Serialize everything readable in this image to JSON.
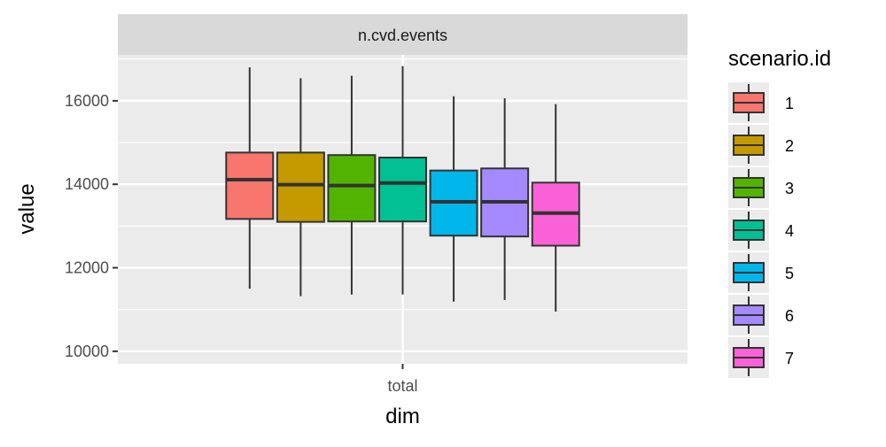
{
  "chart_data": {
    "type": "boxplot",
    "facet_label": "n.cvd.events",
    "xlabel": "dim",
    "ylabel": "value",
    "categories": [
      "total"
    ],
    "ylim": [
      9700,
      17100
    ],
    "y_ticks": [
      10000,
      12000,
      14000,
      16000
    ],
    "y_tick_labels": [
      "10000",
      "12000",
      "14000",
      "16000"
    ],
    "grid": true,
    "legend": {
      "title": "scenario.id",
      "position": "right"
    },
    "series": [
      {
        "name": "1",
        "color": "#F8766D",
        "min": 11500,
        "q1": 13170,
        "median": 14110,
        "q3": 14760,
        "max": 16800
      },
      {
        "name": "2",
        "color": "#C49A00",
        "min": 11320,
        "q1": 13100,
        "median": 13990,
        "q3": 14760,
        "max": 16540
      },
      {
        "name": "3",
        "color": "#53B400",
        "min": 11360,
        "q1": 13110,
        "median": 13970,
        "q3": 14700,
        "max": 16600
      },
      {
        "name": "4",
        "color": "#00C094",
        "min": 11360,
        "q1": 13110,
        "median": 14030,
        "q3": 14640,
        "max": 16830
      },
      {
        "name": "5",
        "color": "#00B6EB",
        "min": 11190,
        "q1": 12770,
        "median": 13580,
        "q3": 14330,
        "max": 16110
      },
      {
        "name": "6",
        "color": "#A58AFF",
        "min": 11230,
        "q1": 12750,
        "median": 13580,
        "q3": 14380,
        "max": 16060
      },
      {
        "name": "7",
        "color": "#FB61D7",
        "min": 10950,
        "q1": 12530,
        "median": 13310,
        "q3": 14040,
        "max": 15920
      }
    ]
  }
}
